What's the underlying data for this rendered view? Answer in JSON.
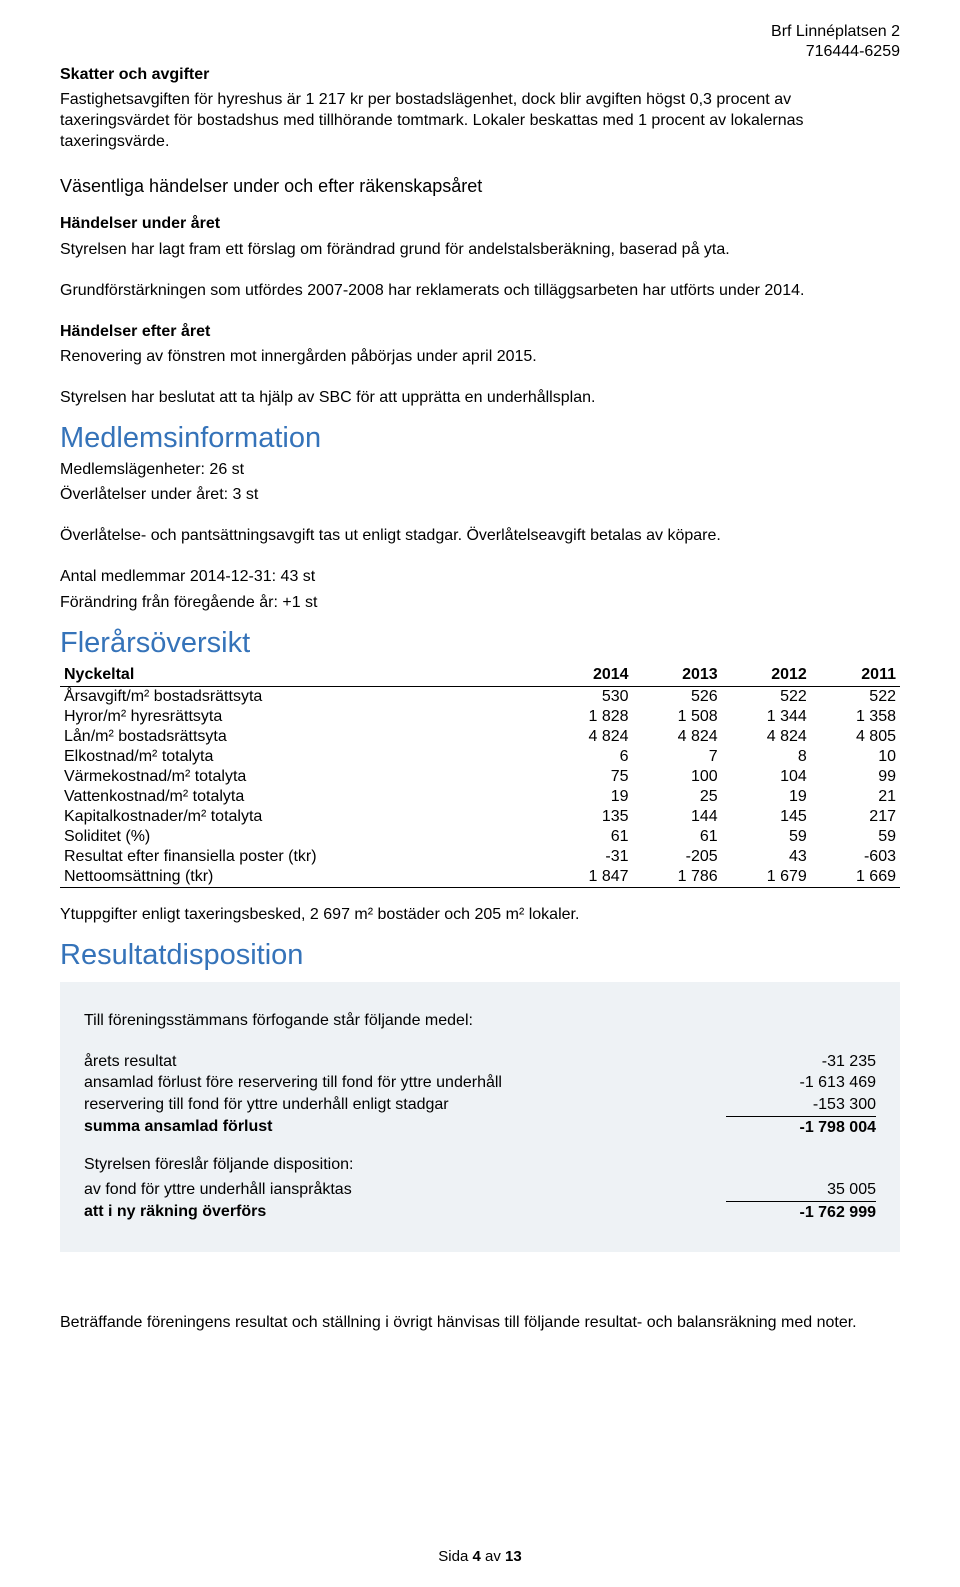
{
  "header": {
    "org_name": "Brf Linnéplatsen 2",
    "org_nr": "716444-6259"
  },
  "skatter": {
    "heading": "Skatter och avgifter",
    "p1": "Fastighetsavgiften för hyreshus är 1 217 kr per bostadslägenhet, dock blir avgiften högst 0,3 procent av taxeringsvärdet för bostadshus med tillhörande tomtmark. Lokaler beskattas med 1 procent av lokalernas taxeringsvärde."
  },
  "vasentliga": {
    "heading": "Väsentliga händelser under och efter räkenskapsåret",
    "sub1": "Händelser under året",
    "p1": "Styrelsen har lagt fram ett förslag om förändrad grund för andelstalsberäkning, baserad på yta.",
    "p2": "Grundförstärkningen som utfördes 2007-2008 har reklamerats och tilläggsarbeten har utförts under 2014.",
    "sub2": "Händelser efter året",
    "p3": "Renovering av fönstren mot innergården påbörjas under april 2015.",
    "p4": "Styrelsen har beslutat att ta hjälp av SBC för att upprätta en underhållsplan."
  },
  "medlem": {
    "heading": "Medlemsinformation",
    "l1": "Medlemslägenheter: 26 st",
    "l2": "Överlåtelser under året: 3 st",
    "l3": "Överlåtelse- och pantsättningsavgift tas ut enligt stadgar.  Överlåtelseavgift betalas av köpare.",
    "l4": "Antal medlemmar 2014-12-31: 43 st",
    "l5": "Förändring från föregående år: +1 st"
  },
  "flerars": {
    "heading": "Flerårsöversikt",
    "cols": [
      "Nyckeltal",
      "2014",
      "2013",
      "2012",
      "2011"
    ],
    "rows": [
      [
        "Årsavgift/m² bostadsrättsyta",
        "530",
        "526",
        "522",
        "522"
      ],
      [
        "Hyror/m² hyresrättsyta",
        "1 828",
        "1 508",
        "1 344",
        "1 358"
      ],
      [
        "Lån/m² bostadsrättsyta",
        "4 824",
        "4 824",
        "4 824",
        "4 805"
      ],
      [
        "Elkostnad/m² totalyta",
        "6",
        "7",
        "8",
        "10"
      ],
      [
        "Värmekostnad/m² totalyta",
        "75",
        "100",
        "104",
        "99"
      ],
      [
        "Vattenkostnad/m² totalyta",
        "19",
        "25",
        "19",
        "21"
      ],
      [
        "Kapitalkostnader/m² totalyta",
        "135",
        "144",
        "145",
        "217"
      ],
      [
        "Soliditet (%)",
        "61",
        "61",
        "59",
        "59"
      ],
      [
        "Resultat efter finansiella poster (tkr)",
        "-31",
        "-205",
        "43",
        "-603"
      ],
      [
        "Nettoomsättning (tkr)",
        "1 847",
        "1 786",
        "1 679",
        "1 669"
      ]
    ],
    "note": "Ytuppgifter enligt taxeringsbesked, 2 697 m² bostäder och 205 m² lokaler."
  },
  "resultat": {
    "heading": "Resultatdisposition",
    "intro": "Till föreningsstämmans förfogande står följande medel:",
    "rows1": [
      {
        "label": "årets resultat",
        "value": "-31 235"
      },
      {
        "label": "ansamlad förlust före reservering till fond för yttre underhåll",
        "value": "-1 613 469"
      },
      {
        "label": "reservering till fond för yttre underhåll enligt stadgar",
        "value": "-153 300"
      }
    ],
    "sum1": {
      "label": "summa ansamlad förlust",
      "value": "-1 798 004"
    },
    "intro2": "Styrelsen föreslår följande disposition:",
    "rows2": [
      {
        "label": "av fond för yttre underhåll ianspråktas",
        "value": "35 005"
      }
    ],
    "sum2": {
      "label": "att i ny räkning överförs",
      "value": "-1 762 999"
    },
    "outro": "Beträffande föreningens resultat och ställning i övrigt hänvisas till följande resultat- och balansräkning med noter."
  },
  "footer": {
    "page_label_pre": "Sida ",
    "page_no": "4",
    "page_label_mid": " av ",
    "page_total": "13"
  }
}
